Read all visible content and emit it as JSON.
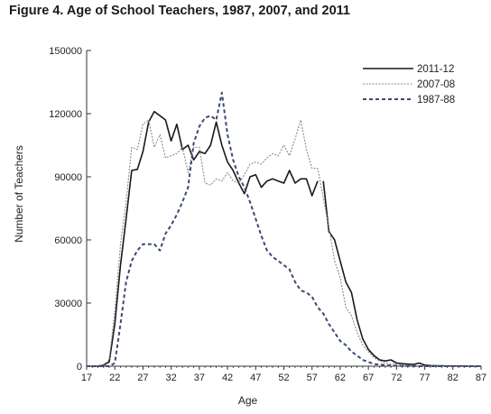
{
  "chart_data": {
    "type": "line",
    "title": "Figure 4. Age of School Teachers, 1987, 2007, and 2011",
    "xlabel": "Age",
    "ylabel": "Number of Teachers",
    "xlim": [
      17,
      87
    ],
    "ylim": [
      0,
      150000
    ],
    "x_ticks": [
      17,
      22,
      27,
      32,
      37,
      42,
      47,
      52,
      57,
      62,
      67,
      72,
      77,
      82,
      87
    ],
    "y_ticks": [
      0,
      30000,
      60000,
      90000,
      120000,
      150000
    ],
    "legend_position": "top-right",
    "x": [
      17,
      18,
      19,
      20,
      21,
      22,
      23,
      24,
      25,
      26,
      27,
      28,
      29,
      30,
      31,
      32,
      33,
      34,
      35,
      36,
      37,
      38,
      39,
      40,
      41,
      42,
      43,
      44,
      45,
      46,
      47,
      48,
      49,
      50,
      51,
      52,
      53,
      54,
      55,
      56,
      57,
      58,
      59,
      60,
      61,
      62,
      63,
      64,
      65,
      66,
      67,
      68,
      69,
      70,
      71,
      72,
      73,
      74,
      75,
      76,
      77,
      78,
      79,
      80,
      81,
      82,
      83,
      84,
      85,
      86,
      87
    ],
    "series": [
      {
        "name": "2011-12",
        "style": "solid",
        "color": "#1a1a1a",
        "values": [
          0,
          0,
          0,
          500,
          2000,
          20000,
          48000,
          70000,
          93000,
          93500,
          102000,
          116000,
          121000,
          119000,
          117000,
          107000,
          115000,
          103000,
          105000,
          98000,
          102000,
          101000,
          105000,
          116000,
          105000,
          97000,
          93000,
          87000,
          82000,
          90000,
          91000,
          85000,
          88000,
          89000,
          88000,
          87000,
          93000,
          87000,
          89000,
          89000,
          81000,
          88000,
          null,
          null,
          null,
          null,
          null,
          null,
          null,
          null,
          null,
          null,
          null,
          null,
          null,
          null,
          null,
          null,
          null,
          null,
          null,
          null,
          null,
          null,
          null,
          null,
          null,
          null,
          null,
          null,
          null
        ]
      },
      {
        "name": "2011-12",
        "style": "solid",
        "color": "#1a1a1a",
        "values": [
          null,
          null,
          null,
          null,
          null,
          null,
          null,
          null,
          null,
          null,
          null,
          null,
          null,
          null,
          null,
          null,
          null,
          null,
          null,
          null,
          null,
          null,
          null,
          null,
          null,
          null,
          null,
          null,
          null,
          null,
          null,
          null,
          null,
          null,
          null,
          null,
          null,
          null,
          null,
          null,
          null,
          null,
          88000,
          64000,
          60000,
          50000,
          40000,
          35000,
          22000,
          13000,
          8000,
          5000,
          3000,
          2500,
          3000,
          1500,
          1200,
          1000,
          800,
          1500,
          500,
          300,
          200,
          200,
          100,
          100,
          100,
          100,
          0,
          0,
          0
        ]
      },
      {
        "name": "2007-08",
        "style": "dotted",
        "color": "#8a8a8a",
        "values": [
          0,
          0,
          200,
          800,
          3000,
          26000,
          58000,
          78000,
          104000,
          103000,
          115000,
          117000,
          104000,
          110000,
          99000,
          100000,
          101000,
          104000,
          92000,
          104000,
          104000,
          87000,
          86000,
          89000,
          88000,
          92000,
          88000,
          87000,
          91000,
          96000,
          97000,
          96000,
          99000,
          101000,
          100000,
          105000,
          100000,
          108000,
          117000,
          103000,
          94000,
          94000,
          80000,
          66000,
          50000,
          42000,
          28000,
          24000,
          16000,
          10000,
          7000,
          4000,
          2500,
          1500,
          1000,
          1000,
          600,
          500,
          300,
          200,
          100,
          100,
          100,
          0,
          0,
          0,
          0,
          0,
          0,
          0,
          0
        ]
      },
      {
        "name": "1987-88",
        "style": "dashed",
        "color": "#3a4a72",
        "values": [
          0,
          0,
          0,
          0,
          0,
          1500,
          20000,
          40000,
          50000,
          55000,
          58000,
          58000,
          58000,
          55000,
          63000,
          67000,
          72000,
          78000,
          85000,
          106000,
          114000,
          118000,
          119000,
          117000,
          130000,
          110000,
          98000,
          90000,
          85000,
          78000,
          70000,
          62000,
          55000,
          52000,
          50000,
          48000,
          46000,
          40000,
          36000,
          35000,
          33000,
          28000,
          25000,
          20000,
          16000,
          12000,
          10000,
          7000,
          5000,
          3000,
          2000,
          1000,
          800,
          500,
          300,
          200,
          100,
          100,
          100,
          0,
          0,
          0,
          0,
          0,
          0,
          0,
          0,
          0,
          0,
          0,
          0
        ]
      }
    ]
  }
}
